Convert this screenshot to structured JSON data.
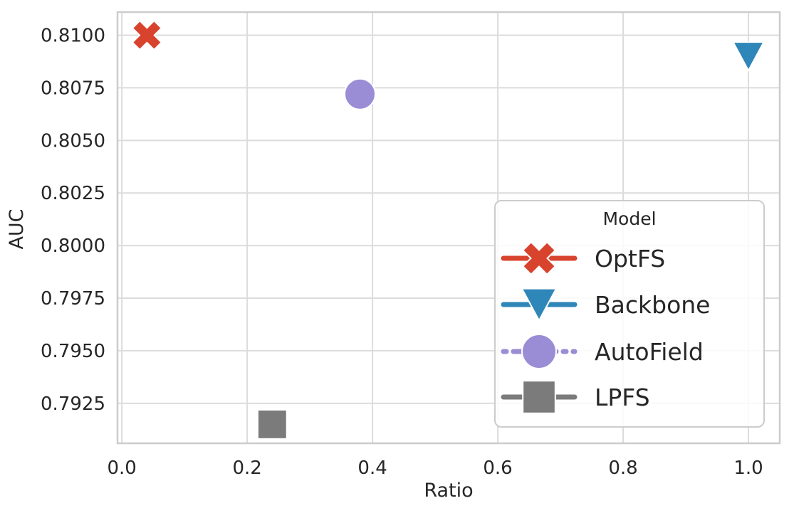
{
  "chart_data": {
    "type": "scatter",
    "title": "",
    "xlabel": "Ratio",
    "ylabel": "AUC",
    "xlim": [
      -0.007,
      1.05
    ],
    "ylim": [
      0.7906,
      0.8111
    ],
    "grid": true,
    "x_ticks": [
      0.0,
      0.2,
      0.4,
      0.6,
      0.8,
      1.0
    ],
    "x_tick_labels": [
      "0.0",
      "0.2",
      "0.4",
      "0.6",
      "0.8",
      "1.0"
    ],
    "y_ticks": [
      0.7925,
      0.795,
      0.7975,
      0.8,
      0.8025,
      0.805,
      0.8075,
      0.81
    ],
    "y_tick_labels": [
      "0.7925",
      "0.7950",
      "0.7975",
      "0.8000",
      "0.8025",
      "0.8050",
      "0.8075",
      "0.8100"
    ],
    "legend_title": "Model",
    "legend_position": "lower right",
    "series": [
      {
        "name": "OptFS",
        "marker": "x-icon",
        "line_style": "solid",
        "color": "#d8432e",
        "points": [
          {
            "x": 0.04,
            "y": 0.81
          }
        ]
      },
      {
        "name": "Backbone",
        "marker": "triangle-down-icon",
        "line_style": "solid",
        "color": "#2f86b8",
        "points": [
          {
            "x": 1.0,
            "y": 0.809
          }
        ]
      },
      {
        "name": "AutoField",
        "marker": "circle-icon",
        "line_style": "dashed",
        "color": "#9a8cd5",
        "points": [
          {
            "x": 0.38,
            "y": 0.8072
          }
        ]
      },
      {
        "name": "LPFS",
        "marker": "square-icon",
        "line_style": "solid",
        "color": "#7b7b7b",
        "points": [
          {
            "x": 0.24,
            "y": 0.7915
          }
        ]
      }
    ],
    "colors": {
      "text": "#262626",
      "grid": "#dcdcdc",
      "spine": "#cccccc",
      "legend_border": "#cccccc",
      "background": "#ffffff"
    }
  }
}
